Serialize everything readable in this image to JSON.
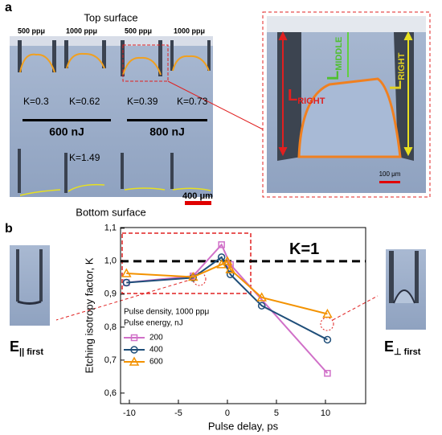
{
  "panel_a": {
    "label": "a",
    "top": "Top surface",
    "bottom": "Bottom surface",
    "densities": [
      "500 ppμ",
      "1000 ppμ",
      "500 ppμ",
      "1000 ppμ"
    ],
    "k_top": [
      "K=0.3",
      "K=0.62",
      "K=0.39",
      "K=0.73"
    ],
    "energies": [
      "600 nJ",
      "800 nJ"
    ],
    "k_bottom": "K=1.49",
    "scale": "400 μm",
    "inset": {
      "left": {
        "main": "L",
        "sub": "RIGHT"
      },
      "middle": {
        "main": "L",
        "sub": "MIDDLE"
      },
      "right": {
        "main": "L",
        "sub": "RIGHT"
      },
      "scale": "100 μm"
    }
  },
  "panel_b": {
    "label": "b",
    "left_field": {
      "main": "E",
      "sub": "|| first"
    },
    "right_field": {
      "main": "E",
      "sub": "⊥ first"
    }
  },
  "chart_data": {
    "type": "line",
    "xlabel": "Pulse delay, ps",
    "ylabel": "Etching isotropy factor, K",
    "xlim": [
      -10.9,
      14.1
    ],
    "ylim": [
      0.568,
      1.102
    ],
    "xticks": [
      -10,
      -5,
      0,
      5,
      10
    ],
    "yticks": [
      {
        "value": 0.6,
        "label": "0,6"
      },
      {
        "value": 0.7,
        "label": "0,7"
      },
      {
        "value": 0.8,
        "label": "0,8"
      },
      {
        "value": 0.9,
        "label": "0,9"
      },
      {
        "value": 1.0,
        "label": "1,0"
      },
      {
        "value": 1.1,
        "label": "1,1"
      }
    ],
    "reference_line": {
      "value": 1.0,
      "label": "K=1"
    },
    "legend_title": [
      "Pulse density, 1000 ppμ",
      "Pulse energy, nJ"
    ],
    "series": [
      {
        "name": "200",
        "color": "#d070c8",
        "marker": "square",
        "x": [
          -10.3,
          -3.5,
          -0.6,
          0.3,
          10.2
        ],
        "values": [
          0.935,
          0.955,
          1.05,
          0.99,
          0.66
        ]
      },
      {
        "name": "400",
        "color": "#1f4e79",
        "marker": "circle",
        "x": [
          -10.3,
          -3.5,
          -0.6,
          0.3,
          3.5,
          10.2
        ],
        "values": [
          0.935,
          0.95,
          1.012,
          0.96,
          0.865,
          0.762
        ]
      },
      {
        "name": "600",
        "color": "#f39200",
        "marker": "triangle",
        "x": [
          -10.3,
          -3.5,
          -0.6,
          0,
          0.3,
          3.5,
          10.2
        ],
        "values": [
          0.963,
          0.952,
          0.99,
          1.0,
          0.975,
          0.89,
          0.84
        ]
      }
    ]
  }
}
